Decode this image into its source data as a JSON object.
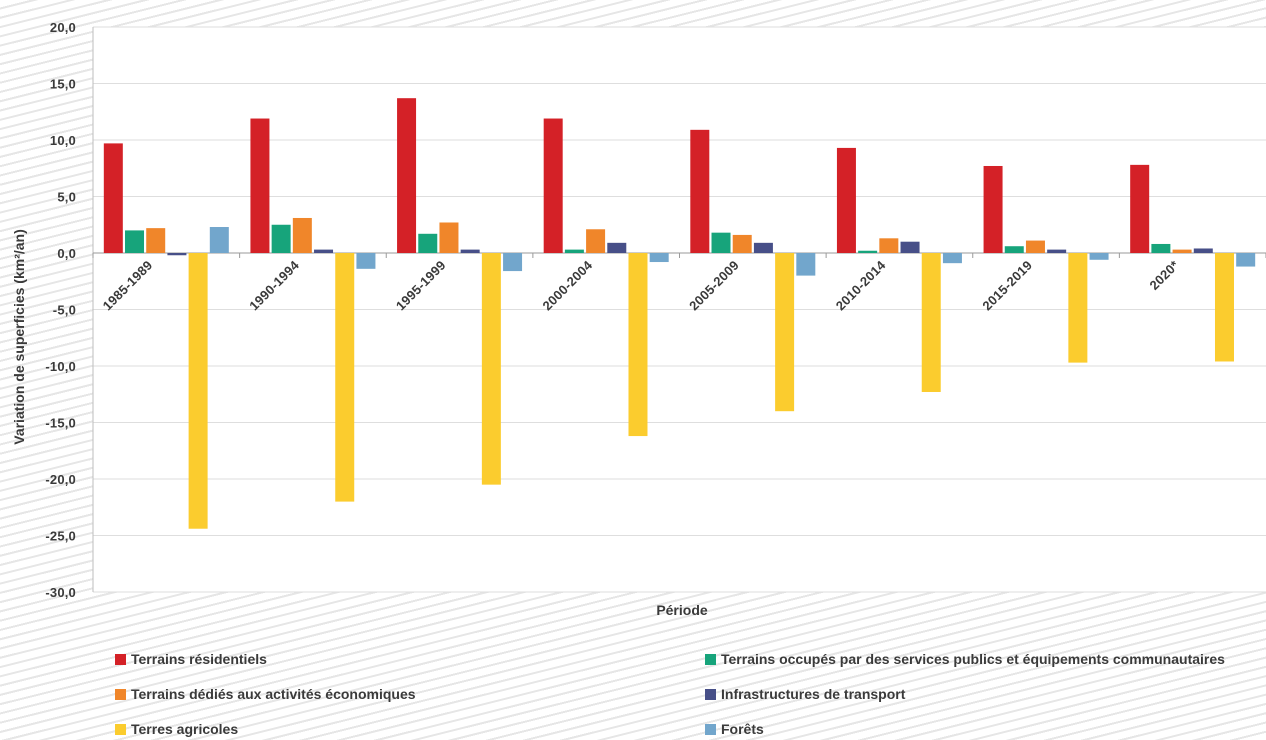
{
  "chart_data": {
    "type": "bar",
    "title": "",
    "xlabel": "Période",
    "ylabel": "Variation de superficies (km²/an)",
    "ylim": [
      -30,
      20
    ],
    "y_ticks": [
      "20,0",
      "15,0",
      "10,0",
      "5,0",
      "0,0",
      "-5,0",
      "-10,0",
      "-15,0",
      "-20,0",
      "-25,0",
      "-30,0"
    ],
    "grid": true,
    "legend_position": "bottom",
    "categories": [
      "1985-1989",
      "1990-1994",
      "1995-1999",
      "2000-2004",
      "2005-2009",
      "2010-2014",
      "2015-2019",
      "2020*"
    ],
    "series": [
      {
        "name": "Terrains résidentiels",
        "color": "#d42127",
        "values": [
          9.7,
          11.9,
          13.7,
          11.9,
          10.9,
          9.3,
          7.7,
          7.8
        ]
      },
      {
        "name": "Terrains occupés par des services publics et équipements communautaires",
        "color": "#17a47b",
        "values": [
          2.0,
          2.5,
          1.7,
          0.3,
          1.8,
          0.2,
          0.6,
          0.8
        ]
      },
      {
        "name": "Terrains dédiés aux activités économiques",
        "color": "#f0862a",
        "values": [
          2.2,
          3.1,
          2.7,
          2.1,
          1.6,
          1.3,
          1.1,
          0.3
        ]
      },
      {
        "name": "Infrastructures de transport",
        "color": "#474f88",
        "values": [
          -0.2,
          0.3,
          0.3,
          0.9,
          0.9,
          1.0,
          0.3,
          0.4
        ]
      },
      {
        "name": "Terres agricoles",
        "color": "#fbcc2e",
        "values": [
          -24.4,
          -22.0,
          -20.5,
          -16.2,
          -14.0,
          -12.3,
          -9.7,
          -9.6
        ]
      },
      {
        "name": "Forêts",
        "color": "#72a6cc",
        "values": [
          2.3,
          -1.4,
          -1.6,
          -0.8,
          -2.0,
          -0.9,
          -0.6,
          -1.2
        ]
      }
    ]
  }
}
